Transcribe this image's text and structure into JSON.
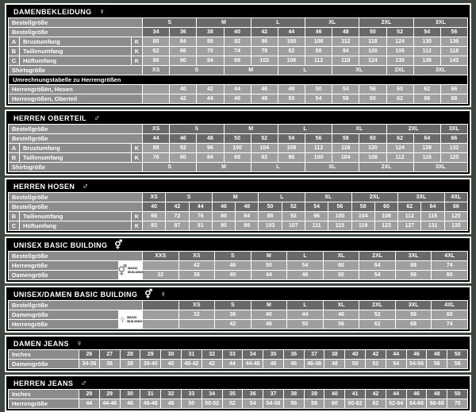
{
  "colors": {
    "page_bg": "#3d463f",
    "cell_dark": "#696969",
    "cell_mid": "#8c8c8c",
    "cell_light": "#9f9f9f",
    "section_header_bg": "#000000",
    "text": "#ffffff",
    "frame": "#ffffff"
  },
  "glyphs": {
    "female": "♀",
    "male": "♂",
    "malefemale": "⚥"
  },
  "badge_text": "BASIC BUILDING",
  "sections": [
    {
      "id": "damenbekleidung",
      "title": "DAMENBEKLEIDUNG",
      "icons": [
        "female"
      ],
      "cols": 12,
      "labelWidth": 168,
      "rows": [
        {
          "label": "Bestellgröße",
          "tone": "dark",
          "cells": [
            {
              "t": "S",
              "s": 2
            },
            {
              "t": "M",
              "s": 2
            },
            {
              "t": "L",
              "s": 2
            },
            {
              "t": "XL",
              "s": 2
            },
            {
              "t": "2XL",
              "s": 2
            },
            {
              "t": "3XL",
              "s": 2
            }
          ]
        },
        {
          "label": "Bestellgröße",
          "tone": "dark",
          "cells": [
            "34",
            "36",
            "38",
            "40",
            "42",
            "44",
            "46",
            "48",
            "50",
            "52",
            "54",
            "56"
          ]
        },
        {
          "letter": "A",
          "label": "Brustumfang",
          "k": "K",
          "tone": "light",
          "cells": [
            "80",
            "84",
            "88",
            "92",
            "96",
            "100",
            "106",
            "112",
            "118",
            "124",
            "130",
            "136"
          ]
        },
        {
          "letter": "B",
          "label": "Taillenumfang",
          "k": "K",
          "tone": "light",
          "cells": [
            "62",
            "66",
            "70",
            "74",
            "78",
            "82",
            "88",
            "94",
            "100",
            "106",
            "112",
            "118"
          ]
        },
        {
          "letter": "C",
          "label": "Hüftumfang",
          "k": "K",
          "tone": "light",
          "cells": [
            "86",
            "90",
            "94",
            "98",
            "102",
            "106",
            "112",
            "118",
            "124",
            "130",
            "136",
            "142"
          ]
        },
        {
          "label": "Shirtsgröße",
          "tone": "mid",
          "cells": [
            {
              "t": "XS",
              "s": 1
            },
            {
              "t": "S",
              "s": 2
            },
            {
              "t": "M",
              "s": 2
            },
            {
              "t": "L",
              "s": 2
            },
            {
              "t": "XL",
              "s": 2
            },
            {
              "t": "2XL",
              "s": 1
            },
            {
              "t": "3XL",
              "s": 2
            }
          ]
        },
        {
          "bar": "Umrechnungstabelle zu Herrengrößen"
        },
        {
          "label": "Herrengrößën, Hosen",
          "tone": "light",
          "cells": [
            "",
            "40",
            "42",
            "44",
            "46",
            "48",
            "50",
            "54",
            "56",
            "60",
            "62",
            "66"
          ]
        },
        {
          "label": "Herrengrößen, Oberteil",
          "tone": "light",
          "cells": [
            "",
            "42",
            "44",
            "46",
            "48",
            "50",
            "54",
            "56",
            "60",
            "62",
            "66",
            "68"
          ]
        }
      ]
    },
    {
      "id": "herren-oberteil",
      "title": "HERREN OBERTEIL",
      "icons": [
        "male"
      ],
      "cols": 12,
      "labelWidth": 168,
      "rows": [
        {
          "label": "Bestellgröße",
          "tone": "dark",
          "cells": [
            {
              "t": "XS",
              "s": 1
            },
            {
              "t": "S",
              "s": 2
            },
            {
              "t": "M",
              "s": 2
            },
            {
              "t": "L",
              "s": 2
            },
            {
              "t": "XL",
              "s": 2
            },
            {
              "t": "2XL",
              "s": 2
            },
            {
              "t": "3XL",
              "s": 1
            }
          ]
        },
        {
          "label": "Bestellgröße",
          "tone": "dark",
          "cells": [
            "44",
            "46",
            "48",
            "50",
            "52",
            "54",
            "56",
            "58",
            "60",
            "62",
            "64",
            "66"
          ]
        },
        {
          "letter": "A",
          "label": "Brustumfang",
          "k": "K",
          "tone": "light",
          "cells": [
            "88",
            "92",
            "96",
            "100",
            "104",
            "108",
            "112",
            "116",
            "120",
            "124",
            "128",
            "132"
          ]
        },
        {
          "letter": "B",
          "label": "Taillenumfang",
          "k": "K",
          "tone": "light",
          "cells": [
            "76",
            "80",
            "84",
            "88",
            "92",
            "96",
            "100",
            "104",
            "108",
            "112",
            "116",
            "120"
          ]
        },
        {
          "label": "Shirtsgröße",
          "tone": "mid",
          "cells": [
            {
              "t": "S",
              "s": 2
            },
            {
              "t": "M",
              "s": 2
            },
            {
              "t": "L",
              "s": 2
            },
            {
              "t": "XL",
              "s": 2
            },
            {
              "t": "2XL",
              "s": 2
            },
            {
              "t": "3XL",
              "s": 2
            }
          ]
        }
      ]
    },
    {
      "id": "herren-hosen",
      "title": "HERREN HOSEN",
      "icons": [
        "male"
      ],
      "cols": 14,
      "labelWidth": 168,
      "rows": [
        {
          "label": "Bestellgröße",
          "tone": "dark",
          "cells": [
            {
              "t": "XS",
              "s": 1
            },
            {
              "t": "S",
              "s": 2
            },
            {
              "t": "M",
              "s": 2
            },
            {
              "t": "L",
              "s": 2
            },
            {
              "t": "XL",
              "s": 2
            },
            {
              "t": "2XL",
              "s": 2
            },
            {
              "t": "3XL",
              "s": 2
            },
            {
              "t": "4XL",
              "s": 1
            }
          ]
        },
        {
          "label": "Bestellgröße",
          "tone": "dark",
          "cells": [
            "40",
            "42",
            "44",
            "46",
            "48",
            "50",
            "52",
            "54",
            "56",
            "58",
            "60",
            "62",
            "64",
            "66"
          ]
        },
        {
          "letter": "B",
          "label": "Taillenumfang",
          "k": "K",
          "tone": "light",
          "cells": [
            "68",
            "72",
            "76",
            "80",
            "84",
            "88",
            "92",
            "96",
            "100",
            "104",
            "108",
            "112",
            "116",
            "120"
          ]
        },
        {
          "letter": "C",
          "label": "Hüftumfang",
          "k": "K",
          "tone": "light",
          "cells": [
            "83",
            "87",
            "91",
            "95",
            "99",
            "103",
            "107",
            "111",
            "115",
            "119",
            "123",
            "127",
            "131",
            "135"
          ]
        }
      ]
    },
    {
      "id": "unisex-basic-building",
      "title": "UNISEX BASIC BUILDING",
      "icons": [
        "malefemale"
      ],
      "cols": 9,
      "labelWidth": 168,
      "iconBox": {
        "symbol": "malefemale"
      },
      "rows": [
        {
          "label": "Bestellgröße",
          "tone": "dark",
          "cells": [
            "XXS",
            "XS",
            "S",
            "M",
            "L",
            "XL",
            "2XL",
            "3XL",
            "4XL"
          ]
        },
        {
          "label": "Herrengröße",
          "iconGap": true,
          "tone": "light",
          "cells": [
            "",
            "42",
            "46",
            "50",
            "54",
            "60",
            "64",
            "68",
            "74"
          ]
        },
        {
          "label": "Damengröße",
          "iconGap": true,
          "tone": "light",
          "cells": [
            "32",
            "36",
            "40",
            "44",
            "46",
            "50",
            "54",
            "56",
            "60"
          ]
        }
      ]
    },
    {
      "id": "unisex-damen-basic-building",
      "title": "UNISEX/DAMEN BASIC BUILDING",
      "icons": [
        "malefemale",
        "female"
      ],
      "cols": 9,
      "labelWidth": 168,
      "iconBox": {
        "symbol": "female"
      },
      "rows": [
        {
          "label": "Bestellgröße",
          "tone": "dark",
          "cells": [
            "",
            "XS",
            "S",
            "M",
            "L",
            "XL",
            "2XL",
            "3XL",
            "4XL"
          ]
        },
        {
          "label": "Damengröße",
          "iconGap": true,
          "tone": "light",
          "cells": [
            "",
            "32",
            "36",
            "40",
            "44",
            "48",
            "52",
            "56",
            "60"
          ]
        },
        {
          "label": "Herrengröße",
          "iconGap": true,
          "tone": "light",
          "cells": [
            "",
            "",
            "42",
            "46",
            "50",
            "56",
            "62",
            "68",
            "74"
          ]
        }
      ]
    },
    {
      "id": "damen-jeans",
      "title": "DAMEN JEANS",
      "icons": [
        "female"
      ],
      "cols": 19,
      "labelWidth": 88,
      "rows": [
        {
          "label": "Inches",
          "tone": "dark",
          "cells": [
            "26",
            "27",
            "28",
            "29",
            "30",
            "31",
            "32",
            "33",
            "34",
            "35",
            "36",
            "37",
            "38",
            "40",
            "42",
            "44",
            "46",
            "48",
            "50"
          ]
        },
        {
          "label": "Damengröße",
          "tone": "light",
          "cells": [
            "34-36",
            "36",
            "38",
            "38-40",
            "40",
            "40-42",
            "42",
            "44",
            "44-46",
            "46",
            "46",
            "46-48",
            "48",
            "50",
            "52",
            "54",
            "54-56",
            "56",
            "58"
          ]
        }
      ]
    },
    {
      "id": "herren-jeans",
      "title": "HERREN JEANS",
      "icons": [
        "male"
      ],
      "cols": 19,
      "labelWidth": 88,
      "rows": [
        {
          "label": "Inches",
          "tone": "dark",
          "cells": [
            "28",
            "29",
            "30",
            "31",
            "32",
            "33",
            "34",
            "35",
            "36",
            "37",
            "38",
            "39",
            "40",
            "41",
            "42",
            "44",
            "46",
            "48",
            "50"
          ]
        },
        {
          "label": "Herrengröße",
          "tone": "light",
          "cells": [
            "44",
            "44-46",
            "46",
            "46-48",
            "48",
            "50",
            "50-52",
            "52",
            "54",
            "54-56",
            "56",
            "58",
            "60",
            "60-62",
            "62",
            "62-64",
            "64-66",
            "66-68",
            "70"
          ]
        }
      ]
    }
  ]
}
